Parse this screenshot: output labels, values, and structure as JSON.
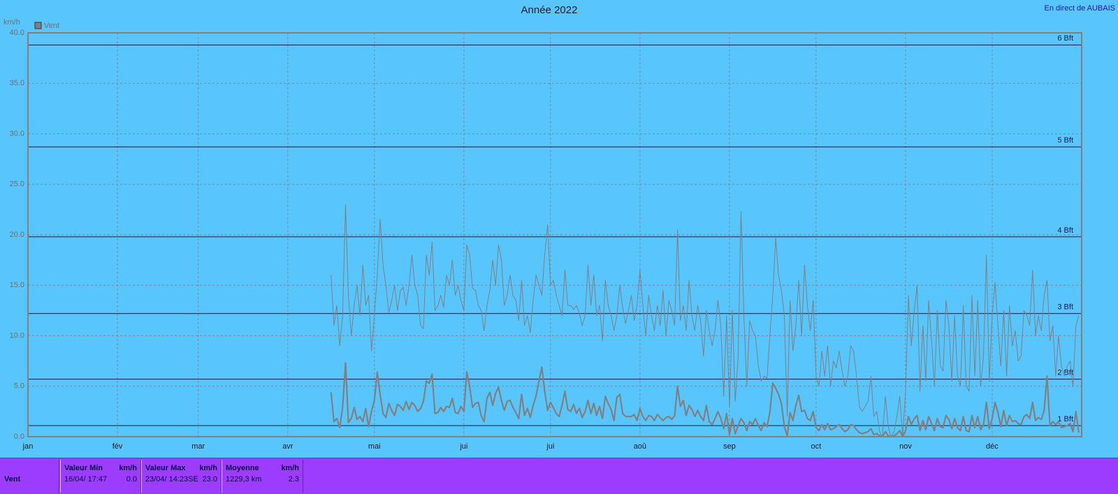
{
  "chart_data": {
    "type": "line",
    "title": "Année 2022",
    "corner_text": "En direct de AUBAIS",
    "y_label": "km/h",
    "x": [
      106,
      107,
      108,
      109,
      110,
      111,
      112,
      113,
      114,
      115,
      116,
      117,
      118,
      119,
      120,
      121,
      122,
      123,
      124,
      125,
      126,
      127,
      128,
      129,
      130,
      131,
      132,
      133,
      134,
      135,
      136,
      137,
      138,
      139,
      140,
      141,
      142,
      143,
      144,
      145,
      146,
      147,
      148,
      149,
      150,
      151,
      152,
      153,
      154,
      155,
      156,
      157,
      158,
      159,
      160,
      161,
      162,
      163,
      164,
      165,
      166,
      167,
      168,
      169,
      170,
      171,
      172,
      173,
      174,
      175,
      176,
      177,
      178,
      179,
      180,
      181,
      182,
      183,
      184,
      185,
      186,
      187,
      188,
      189,
      190,
      191,
      192,
      193,
      194,
      195,
      196,
      197,
      198,
      199,
      200,
      201,
      202,
      203,
      204,
      205,
      206,
      207,
      208,
      209,
      210,
      211,
      212,
      213,
      214,
      215,
      216,
      217,
      218,
      219,
      220,
      221,
      222,
      223,
      224,
      225,
      226,
      227,
      228,
      229,
      230,
      231,
      232,
      233,
      234,
      235,
      236,
      237,
      238,
      239,
      240,
      241,
      242,
      243,
      244,
      245,
      246,
      247,
      248,
      249,
      250,
      251,
      252,
      253,
      254,
      255,
      256,
      257,
      258,
      259,
      260,
      261,
      262,
      263,
      264,
      265,
      266,
      267,
      268,
      269,
      270,
      271,
      272,
      273,
      274,
      275,
      276,
      277,
      278,
      279,
      280,
      281,
      282,
      283,
      284,
      285,
      286,
      287,
      288,
      289,
      290,
      291,
      292,
      293,
      294,
      295,
      296,
      297,
      298,
      299,
      300,
      301,
      302,
      303,
      304,
      305,
      306,
      307,
      308,
      309,
      310,
      311,
      312,
      313,
      314,
      315,
      316,
      317,
      318,
      319,
      320,
      321,
      322,
      323,
      324,
      325,
      326,
      327,
      328,
      329,
      330,
      331,
      332,
      333,
      334,
      335,
      336,
      337,
      338,
      339,
      340,
      341,
      342,
      343,
      344,
      345,
      346,
      347,
      348,
      349,
      350,
      351,
      352,
      353,
      354,
      355,
      356,
      357,
      358,
      359,
      360,
      361,
      362,
      363,
      364,
      365
    ],
    "series": [
      {
        "color": "#808080",
        "width": 1,
        "values": [
          16,
          11,
          13,
          9,
          12,
          23,
          14,
          10,
          13,
          15,
          12,
          17,
          13,
          14,
          8.5,
          12,
          16,
          21.5,
          17,
          15,
          12.3,
          13.5,
          15,
          12.5,
          14.5,
          14.8,
          13,
          15,
          18,
          15,
          14,
          11,
          10.7,
          18,
          16,
          19.3,
          12.5,
          13,
          14,
          12.8,
          16,
          15,
          17.5,
          14,
          15,
          13.5,
          12.5,
          19,
          18,
          14.7,
          14.5,
          13,
          12.5,
          10.5,
          13,
          14.5,
          17.5,
          15,
          19,
          17.5,
          13,
          14,
          16,
          14,
          13.5,
          11.5,
          15.5,
          11,
          12,
          10.3,
          13.5,
          16,
          15,
          14,
          18,
          21,
          15,
          15.5,
          14,
          13,
          12,
          16.5,
          13,
          13,
          12.6,
          13,
          12.2,
          11,
          12,
          17,
          13,
          16,
          12,
          13,
          9.5,
          15.5,
          13,
          12,
          10.5,
          12,
          15,
          12.8,
          11.2,
          12.5,
          14,
          11.5,
          13,
          16.5,
          13,
          10,
          14,
          12,
          10.5,
          13,
          11,
          14.5,
          10,
          13.5,
          12.5,
          11,
          20.5,
          11.5,
          13,
          10.5,
          15.5,
          12,
          10.5,
          13,
          11.5,
          8,
          12.5,
          10.5,
          9,
          10.5,
          13.5,
          11,
          4,
          12,
          3,
          12.5,
          3.5,
          8,
          22.3,
          12,
          5,
          11.5,
          10.5,
          10,
          7,
          5.5,
          6,
          5.8,
          10,
          14,
          19.7,
          16,
          14.5,
          12,
          2,
          13.5,
          8.5,
          11,
          15.5,
          10,
          17,
          13,
          10.5,
          13.5,
          6,
          5,
          8.5,
          6,
          9,
          5,
          7.5,
          6.8,
          8.5,
          6.5,
          5,
          6,
          9,
          8.5,
          6,
          3,
          2.5,
          3,
          3.5,
          6,
          2,
          2.5,
          0.5,
          0,
          4,
          1,
          0,
          0.5,
          2,
          4,
          0,
          4.5,
          14,
          9,
          12.5,
          15,
          4.5,
          11,
          5.5,
          13.5,
          9.5,
          5,
          12.5,
          7,
          6.5,
          13.5,
          11,
          5.5,
          12,
          6,
          5,
          13,
          5,
          4.5,
          14,
          6,
          13.5,
          5,
          8,
          18,
          5.5,
          12,
          15.3,
          11,
          7,
          12.5,
          6,
          13,
          9,
          10.5,
          7.5,
          8,
          12.5,
          12,
          11,
          16.5,
          10,
          12,
          10.5,
          14,
          15.5,
          9.5,
          11,
          6,
          10,
          7,
          6,
          7,
          7.5,
          5,
          11,
          12
        ]
      },
      {
        "name": "Vent",
        "color": "#808080",
        "width": 2.2,
        "values": [
          4.4,
          1.5,
          1.8,
          0.9,
          2.9,
          7.3,
          1.4,
          1.8,
          2.9,
          1.7,
          2.0,
          1.5,
          2.8,
          1.0,
          2.5,
          3.6,
          6.4,
          4.2,
          2.3,
          1.9,
          3.3,
          2.6,
          2.1,
          3.2,
          3.0,
          2.6,
          3.5,
          2.7,
          3.4,
          3.1,
          2.5,
          2.8,
          3.5,
          5.5,
          5.3,
          6.2,
          2.3,
          2.4,
          2.9,
          2.5,
          3.0,
          2.9,
          3.8,
          2.4,
          2.3,
          3.0,
          2.5,
          6.4,
          5.0,
          2.9,
          3.3,
          3.4,
          2.1,
          1.5,
          3.8,
          4.4,
          3.1,
          4.3,
          4.9,
          3.6,
          2.6,
          3.5,
          3.6,
          2.9,
          2.4,
          1.8,
          4.2,
          2.1,
          2.8,
          1.9,
          3.1,
          4.0,
          5.5,
          6.9,
          4.5,
          2.6,
          3.4,
          2.9,
          2.3,
          2.0,
          3.1,
          4.5,
          2.7,
          2.5,
          3.2,
          2.3,
          2.8,
          1.9,
          2.5,
          3.6,
          2.3,
          3.3,
          2.1,
          3.0,
          1.8,
          4.0,
          3.3,
          2.7,
          1.6,
          3.9,
          4.2,
          2.3,
          2.0,
          2.0,
          2.0,
          2.2,
          1.6,
          2.8,
          2.0,
          1.6,
          2.1,
          2.0,
          1.6,
          2.2,
          1.9,
          1.6,
          1.9,
          2.0,
          1.7,
          2.1,
          5.0,
          3.0,
          3.6,
          2.1,
          3.1,
          2.7,
          2.0,
          2.6,
          2.0,
          1.6,
          3.1,
          1.5,
          1.2,
          1.8,
          2.5,
          1.8,
          0.8,
          2.3,
          0.2,
          1.8,
          0.3,
          1.1,
          1.8,
          1.4,
          0.6,
          1.5,
          1.2,
          1.8,
          1.1,
          0.6,
          1.4,
          1.0,
          2.4,
          5.3,
          4.8,
          4.2,
          3.3,
          1.0,
          0.1,
          2.4,
          1.6,
          3.1,
          4.1,
          2.5,
          2.6,
          1.8,
          1.6,
          2.5,
          0.9,
          0.6,
          1.2,
          0.7,
          1.3,
          0.7,
          0.8,
          1.0,
          1.2,
          0.8,
          0.5,
          0.7,
          1.2,
          1.1,
          0.7,
          0.4,
          0.3,
          0.4,
          0.5,
          0.8,
          0.2,
          0.3,
          0.1,
          0.0,
          0.5,
          0.1,
          0.0,
          0.1,
          0.3,
          0.6,
          0.0,
          0.6,
          2.0,
          1.2,
          1.8,
          2.1,
          0.6,
          1.6,
          0.7,
          2.0,
          1.3,
          0.6,
          1.8,
          1.0,
          0.9,
          2.1,
          1.7,
          0.8,
          1.8,
          0.9,
          0.6,
          2.0,
          0.6,
          0.5,
          2.1,
          0.9,
          2.0,
          0.7,
          1.2,
          3.4,
          0.8,
          1.8,
          3.4,
          2.4,
          1.0,
          2.6,
          1.1,
          2.1,
          1.5,
          1.6,
          1.3,
          1.2,
          2.0,
          2.2,
          1.8,
          3.4,
          1.6,
          1.9,
          1.7,
          2.6,
          6.0,
          1.1,
          1.5,
          1.2,
          1.5,
          0.9,
          1.0,
          1.1,
          1.3,
          0.5,
          2.5,
          0.4
        ]
      }
    ],
    "xlim": [
      1,
      366
    ],
    "xticks": [
      {
        "value": 1,
        "label": "jan"
      },
      {
        "value": 32,
        "label": "fév"
      },
      {
        "value": 60,
        "label": "mar"
      },
      {
        "value": 91,
        "label": "avr"
      },
      {
        "value": 121,
        "label": "mai"
      },
      {
        "value": 152,
        "label": "jui"
      },
      {
        "value": 182,
        "label": "jui"
      },
      {
        "value": 213,
        "label": "aoû"
      },
      {
        "value": 244,
        "label": "sep"
      },
      {
        "value": 274,
        "label": "oct"
      },
      {
        "value": 305,
        "label": "nov"
      },
      {
        "value": 335,
        "label": "déc"
      }
    ],
    "ylim": [
      0,
      40
    ],
    "yticks": [
      {
        "value": 0,
        "label": "0.0"
      },
      {
        "value": 5,
        "label": "5.0"
      },
      {
        "value": 10,
        "label": "10.0"
      },
      {
        "value": 15,
        "label": "15.0"
      },
      {
        "value": 20,
        "label": "20.0"
      },
      {
        "value": 25,
        "label": "25.0"
      },
      {
        "value": 30,
        "label": "30.0"
      },
      {
        "value": 35,
        "label": "35.0"
      },
      {
        "value": 40,
        "label": "40.0"
      }
    ],
    "reference_lines": [
      {
        "value": 1.1,
        "label": "1 Bft"
      },
      {
        "value": 5.7,
        "label": "2 Bft"
      },
      {
        "value": 12.2,
        "label": "3 Bft"
      },
      {
        "value": 19.8,
        "label": "4 Bft"
      },
      {
        "value": 28.7,
        "label": "5 Bft"
      },
      {
        "value": 38.8,
        "label": "6 Bft"
      }
    ],
    "grid": true,
    "legend": "top-left"
  },
  "summary": {
    "label": "Vent",
    "columns": [
      {
        "title": "Valeur Min",
        "unit": "km/h",
        "when": "16/04/  17:47",
        "value": "0.0"
      },
      {
        "title": "Valeur Max",
        "unit": "km/h",
        "when": "23/04/  14:23SE",
        "value": "23.0"
      },
      {
        "title": "Moyenne",
        "unit": "km/h",
        "when": "1229,3 km",
        "value": "2.3"
      }
    ]
  }
}
